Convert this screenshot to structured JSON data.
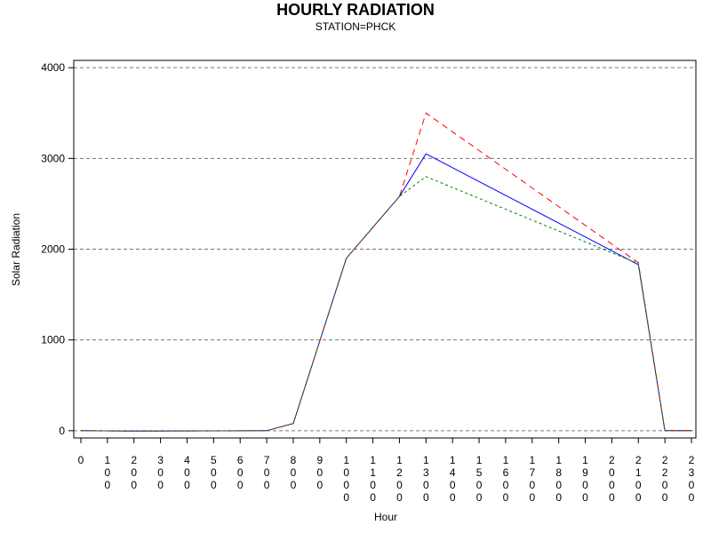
{
  "chart_data": {
    "type": "line",
    "title": "HOURLY RADIATION",
    "subtitle": "STATION=PHCK",
    "xlabel": "Hour",
    "ylabel": "Solar Radiation",
    "x": [
      0,
      100,
      200,
      300,
      400,
      500,
      600,
      700,
      800,
      900,
      1000,
      1100,
      1200,
      1300,
      1400,
      1500,
      1600,
      1700,
      1800,
      1900,
      2000,
      2100,
      2200,
      2300
    ],
    "xticks": [
      "0",
      "100",
      "200",
      "300",
      "400",
      "500",
      "600",
      "700",
      "800",
      "900",
      "1000",
      "1100",
      "1200",
      "1300",
      "1400",
      "1500",
      "1600",
      "1700",
      "1800",
      "1900",
      "2000",
      "2100",
      "2200",
      "2300"
    ],
    "ylim": [
      -80,
      4080
    ],
    "yticks": [
      0,
      1000,
      2000,
      3000,
      4000
    ],
    "grid": "horizontal dashed",
    "series": [
      {
        "color": "#0000ff",
        "style": "solid",
        "points": [
          [
            0,
            0
          ],
          [
            200,
            -5
          ],
          [
            700,
            0
          ],
          [
            800,
            80
          ],
          [
            1000,
            1900
          ],
          [
            1200,
            2580
          ],
          [
            1300,
            3050
          ],
          [
            2100,
            1830
          ],
          [
            2200,
            0
          ],
          [
            2300,
            0
          ]
        ]
      },
      {
        "color": "#ff0000",
        "style": "dash",
        "points": [
          [
            0,
            0
          ],
          [
            200,
            -5
          ],
          [
            700,
            0
          ],
          [
            800,
            80
          ],
          [
            1000,
            1900
          ],
          [
            1200,
            2580
          ],
          [
            1300,
            3500
          ],
          [
            2100,
            1850
          ],
          [
            2200,
            0
          ],
          [
            2300,
            0
          ]
        ]
      },
      {
        "color": "#008000",
        "style": "dot",
        "points": [
          [
            0,
            0
          ],
          [
            200,
            -5
          ],
          [
            700,
            0
          ],
          [
            800,
            80
          ],
          [
            1000,
            1900
          ],
          [
            1200,
            2580
          ],
          [
            1300,
            2800
          ],
          [
            2100,
            1840
          ],
          [
            2200,
            0
          ],
          [
            2300,
            0
          ]
        ]
      }
    ]
  }
}
